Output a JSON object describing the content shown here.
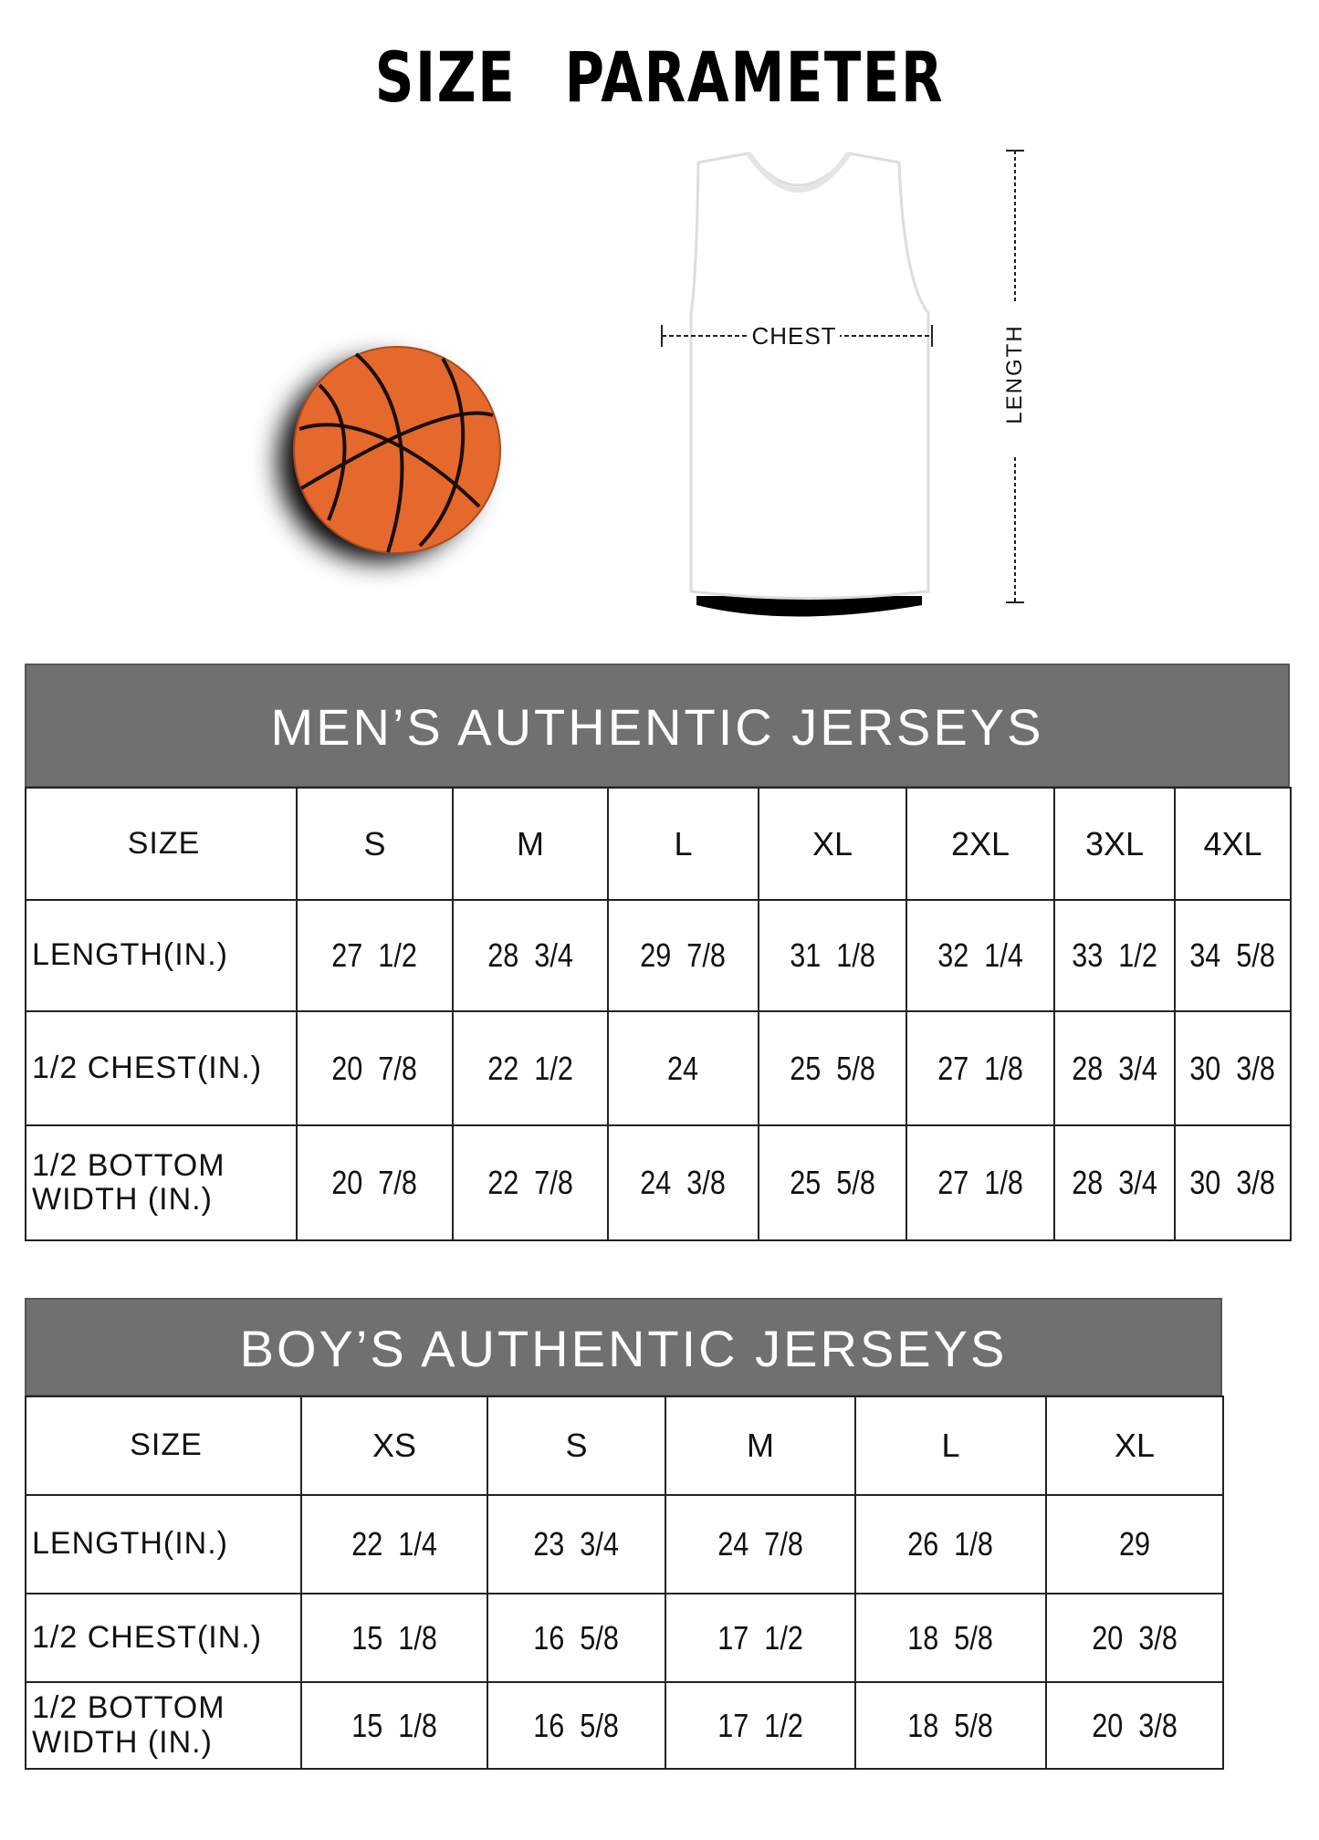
{
  "title": "SIZE PARAMETER",
  "diagram": {
    "chest_label": "CHEST",
    "length_label": "LENGTH"
  },
  "colors": {
    "header_band": "#707070",
    "basketball": "#e5692c"
  },
  "mens": {
    "heading": "MEN’S AUTHENTIC JERSEYS",
    "columns": [
      "SIZE",
      "S",
      "M",
      "L",
      "XL",
      "2XL",
      "3XL",
      "4XL"
    ],
    "rows": [
      {
        "label": "LENGTH(IN.)",
        "values": [
          "27  1/2",
          "28  3/4",
          "29  7/8",
          "31  1/8",
          "32  1/4",
          "33  1/2",
          "34  5/8"
        ]
      },
      {
        "label": "1/2 CHEST(IN.)",
        "values": [
          "20  7/8",
          "22  1/2",
          "24",
          "25  5/8",
          "27  1/8",
          "28  3/4",
          "30  3/8"
        ]
      },
      {
        "label": "1/2 BOTTOM WIDTH  (IN.)",
        "values": [
          "20  7/8",
          "22  7/8",
          "24  3/8",
          "25  5/8",
          "27  1/8",
          "28  3/4",
          "30  3/8"
        ]
      }
    ]
  },
  "boys": {
    "heading": "BOY’S AUTHENTIC JERSEYS",
    "columns": [
      "SIZE",
      "XS",
      "S",
      "M",
      "L",
      "XL"
    ],
    "rows": [
      {
        "label": "LENGTH(IN.)",
        "values": [
          "22  1/4",
          "23  3/4",
          "24  7/8",
          "26  1/8",
          "29"
        ]
      },
      {
        "label": "1/2 CHEST(IN.)",
        "values": [
          "15  1/8",
          "16  5/8",
          "17  1/2",
          "18  5/8",
          "20  3/8"
        ]
      },
      {
        "label": "1/2 BOTTOM WIDTH  (IN.)",
        "values": [
          "15  1/8",
          "16  5/8",
          "17  1/2",
          "18  5/8",
          "20  3/8"
        ]
      }
    ]
  }
}
